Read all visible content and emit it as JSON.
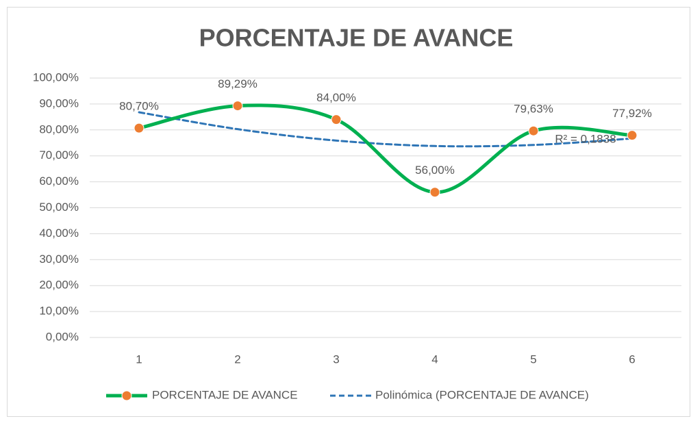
{
  "chart_data": {
    "type": "line",
    "title": "PORCENTAJE DE AVANCE",
    "categories": [
      "1",
      "2",
      "3",
      "4",
      "5",
      "6"
    ],
    "series": [
      {
        "name": "PORCENTAJE DE AVANCE",
        "color": "#00b050",
        "marker_color": "#ed7d31",
        "values": [
          80.7,
          89.29,
          84.0,
          56.0,
          79.63,
          77.92
        ],
        "value_labels": [
          "80,70%",
          "89,29%",
          "84,00%",
          "56,00%",
          "79,63%",
          "77,92%"
        ],
        "smooth": true
      },
      {
        "name": "Polinómica (PORCENTAJE DE AVANCE)",
        "color": "#2e75b6",
        "dashed": true,
        "values": [
          86.8,
          80.3,
          75.9,
          73.8,
          74.2,
          76.7
        ],
        "smooth": true
      }
    ],
    "annotations": [
      "R² = 0,1838"
    ],
    "ylim": [
      0,
      100
    ],
    "yticks": [
      {
        "value": 0,
        "label": "0,00%"
      },
      {
        "value": 10,
        "label": "10,00%"
      },
      {
        "value": 20,
        "label": "20,00%"
      },
      {
        "value": 30,
        "label": "30,00%"
      },
      {
        "value": 40,
        "label": "40,00%"
      },
      {
        "value": 50,
        "label": "50,00%"
      },
      {
        "value": 60,
        "label": "60,00%"
      },
      {
        "value": 70,
        "label": "70,00%"
      },
      {
        "value": 80,
        "label": "80,00%"
      },
      {
        "value": 90,
        "label": "90,00%"
      },
      {
        "value": 100,
        "label": "100,00%"
      }
    ],
    "grid": true,
    "legend": "bottom"
  }
}
